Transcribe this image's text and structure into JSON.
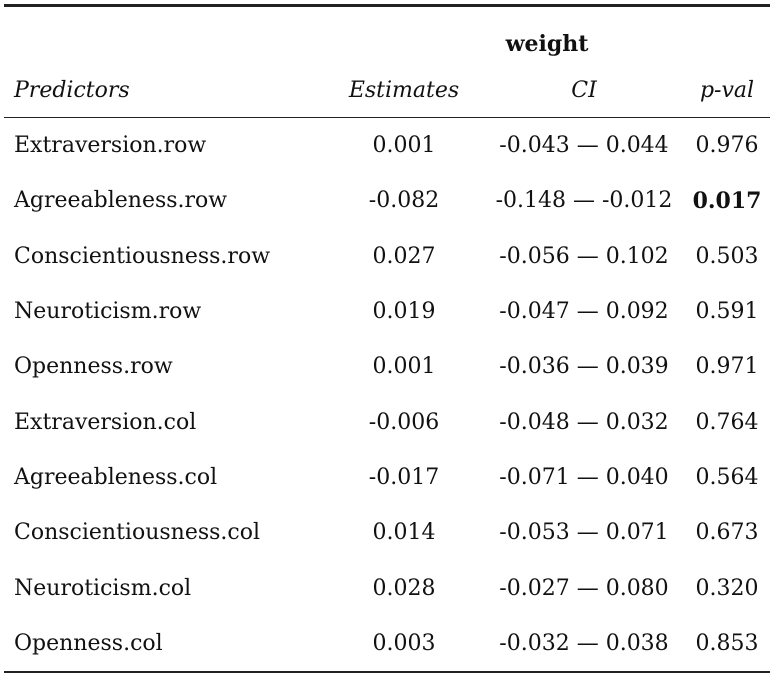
{
  "dependent_variable": "weight",
  "columns": {
    "predictors": "Predictors",
    "estimates": "Estimates",
    "ci": "CI",
    "p": "p-val"
  },
  "rows": [
    {
      "predictor": "Extraversion.row",
      "estimate": "0.001",
      "ci": "-0.043 — 0.044",
      "p": "0.976",
      "bold_p": false
    },
    {
      "predictor": "Agreeableness.row",
      "estimate": "-0.082",
      "ci": "-0.148 — -0.012",
      "p": "0.017",
      "bold_p": true
    },
    {
      "predictor": "Conscientiousness.row",
      "estimate": "0.027",
      "ci": "-0.056 — 0.102",
      "p": "0.503",
      "bold_p": false
    },
    {
      "predictor": "Neuroticism.row",
      "estimate": "0.019",
      "ci": "-0.047 — 0.092",
      "p": "0.591",
      "bold_p": false
    },
    {
      "predictor": "Openness.row",
      "estimate": "0.001",
      "ci": "-0.036 — 0.039",
      "p": "0.971",
      "bold_p": false
    },
    {
      "predictor": "Extraversion.col",
      "estimate": "-0.006",
      "ci": "-0.048 — 0.032",
      "p": "0.764",
      "bold_p": false
    },
    {
      "predictor": "Agreeableness.col",
      "estimate": "-0.017",
      "ci": "-0.071 — 0.040",
      "p": "0.564",
      "bold_p": false
    },
    {
      "predictor": "Conscientiousness.col",
      "estimate": "0.014",
      "ci": "-0.053 — 0.071",
      "p": "0.673",
      "bold_p": false
    },
    {
      "predictor": "Neuroticism.col",
      "estimate": "0.028",
      "ci": "-0.027 — 0.080",
      "p": "0.320",
      "bold_p": false
    },
    {
      "predictor": "Openness.col",
      "estimate": "0.003",
      "ci": "-0.032 — 0.038",
      "p": "0.853",
      "bold_p": false
    }
  ]
}
